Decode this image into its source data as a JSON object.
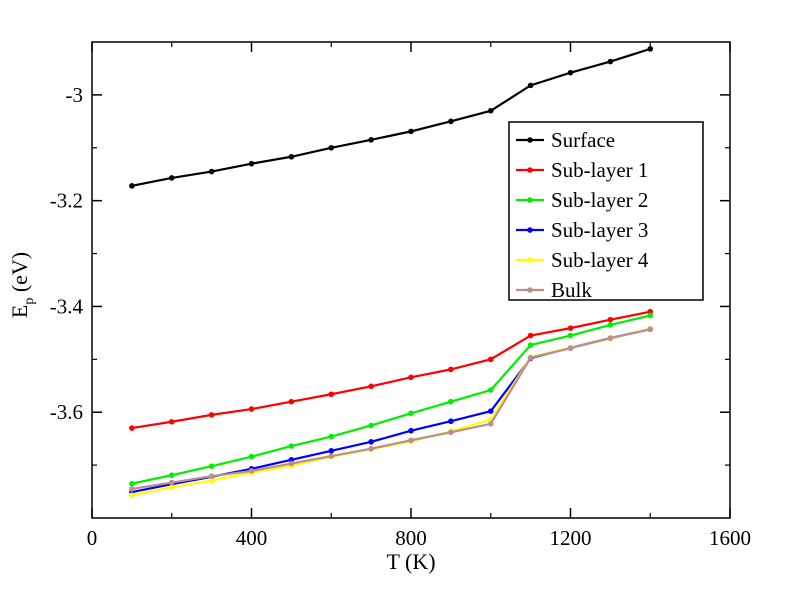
{
  "chart_data": {
    "type": "line",
    "title": "",
    "xlabel": "T (K)",
    "ylabel": {
      "main": "E",
      "sub": "p",
      "unit": " (eV)"
    },
    "xlim": [
      0,
      1600
    ],
    "ylim": [
      -3.8,
      -2.9
    ],
    "xticks": [
      0,
      400,
      800,
      1200,
      1600
    ],
    "yticks": [
      -3.6,
      -3.4,
      -3.2,
      -3
    ],
    "xtick_labels": [
      "0",
      "400",
      "800",
      "1200",
      "1600"
    ],
    "ytick_labels": [
      "-3.6",
      "-3.4",
      "-3.2",
      "-3"
    ],
    "grid": false,
    "legend_position": "top-right",
    "x": [
      100,
      200,
      300,
      400,
      500,
      600,
      700,
      800,
      900,
      1000,
      1100,
      1200,
      1300,
      1400
    ],
    "series": [
      {
        "name": "Surface",
        "color": "#000000",
        "values": [
          -3.172,
          -3.157,
          -3.145,
          -3.13,
          -3.117,
          -3.1,
          -3.085,
          -3.069,
          -3.05,
          -3.03,
          -2.982,
          -2.958,
          -2.937,
          -2.913
        ]
      },
      {
        "name": "Sub-layer 1",
        "color": "#ff0000",
        "values": [
          -3.63,
          -3.618,
          -3.605,
          -3.594,
          -3.58,
          -3.566,
          -3.551,
          -3.534,
          -3.519,
          -3.5,
          -3.455,
          -3.441,
          -3.425,
          -3.41
        ]
      },
      {
        "name": "Sub-layer 2",
        "color": "#00ee00",
        "values": [
          -3.735,
          -3.719,
          -3.702,
          -3.684,
          -3.664,
          -3.646,
          -3.625,
          -3.602,
          -3.58,
          -3.558,
          -3.473,
          -3.455,
          -3.435,
          -3.417
        ]
      },
      {
        "name": "Sub-layer 3",
        "color": "#0000ff",
        "values": [
          -3.751,
          -3.736,
          -3.722,
          -3.707,
          -3.69,
          -3.673,
          -3.656,
          -3.635,
          -3.617,
          -3.598,
          -3.498,
          -3.478,
          -3.46,
          -3.443
        ]
      },
      {
        "name": "Sub-layer 4",
        "color": "#ffff00",
        "values": [
          -3.757,
          -3.742,
          -3.729,
          -3.714,
          -3.701,
          -3.684,
          -3.67,
          -3.655,
          -3.636,
          -3.614,
          -3.496,
          -3.478,
          -3.461,
          -3.442
        ]
      },
      {
        "name": "Bulk",
        "color": "#bc8f8f",
        "values": [
          -3.745,
          -3.733,
          -3.721,
          -3.711,
          -3.697,
          -3.683,
          -3.669,
          -3.653,
          -3.638,
          -3.622,
          -3.497,
          -3.479,
          -3.46,
          -3.443
        ]
      }
    ]
  }
}
